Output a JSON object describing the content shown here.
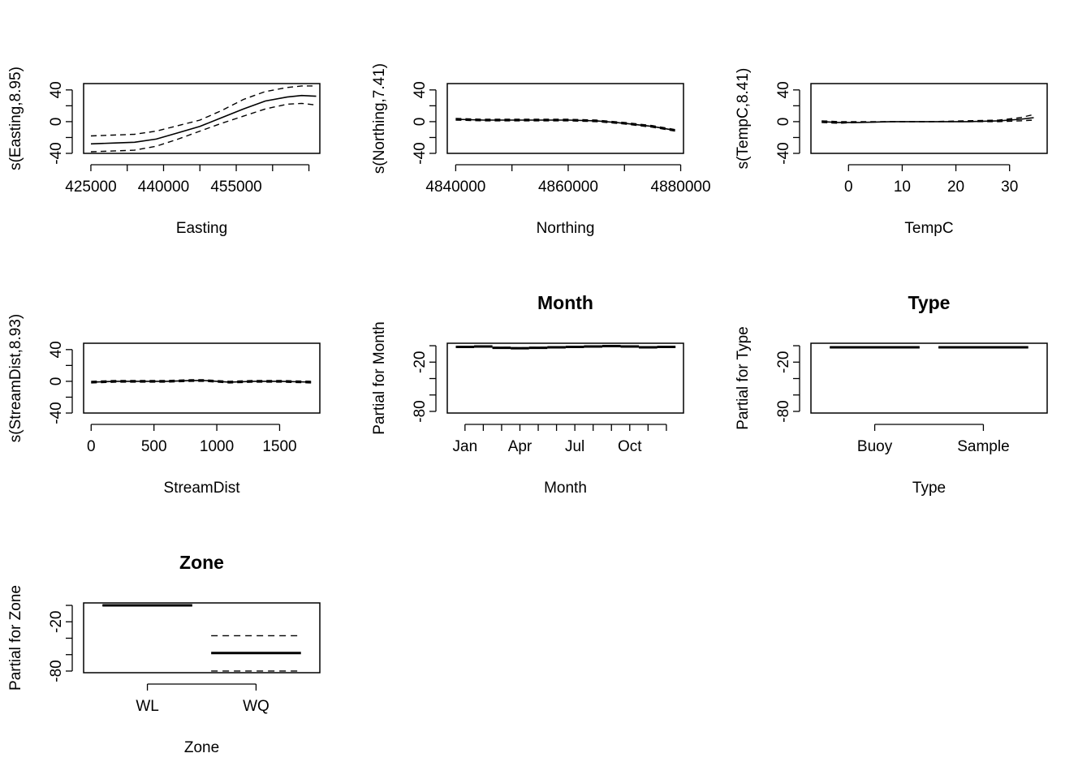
{
  "chart_data": [
    {
      "type": "line",
      "xlabel": "Easting",
      "ylabel": "s(Easting,8.95)",
      "xlim": [
        424000,
        456500
      ],
      "ylim": [
        -40,
        48
      ],
      "xticks": [
        425000,
        430000,
        435000,
        440000,
        445000,
        450000,
        455000
      ],
      "xtick_labels": [
        "425000",
        "",
        "440000",
        "",
        "455000",
        "",
        ""
      ],
      "yticks": [
        -40,
        -20,
        0,
        20,
        40
      ],
      "ytick_labels": [
        "-40",
        "",
        "0",
        "",
        "40"
      ],
      "x": [
        425000,
        428000,
        431000,
        434000,
        437000,
        440000,
        443000,
        446000,
        449000,
        452000,
        454000,
        456000
      ],
      "series": [
        {
          "role": "fit",
          "values": [
            -28,
            -27,
            -26,
            -22,
            -14,
            -6,
            5,
            16,
            26,
            31,
            33,
            32
          ]
        },
        {
          "role": "upper",
          "values": [
            -18,
            -17,
            -16,
            -12,
            -5,
            2,
            14,
            28,
            38,
            43,
            45,
            45
          ]
        },
        {
          "role": "lower",
          "values": [
            -38,
            -37,
            -36,
            -31,
            -22,
            -12,
            -2,
            7,
            16,
            22,
            23,
            21
          ]
        }
      ]
    },
    {
      "type": "line",
      "xlabel": "Northing",
      "ylabel": "s(Northing,7.41)",
      "xlim": [
        4838500,
        4880500
      ],
      "ylim": [
        -40,
        48
      ],
      "xticks": [
        4840000,
        4850000,
        4860000,
        4870000,
        4880000
      ],
      "xtick_labels": [
        "4840000",
        "",
        "4860000",
        "",
        "4880000"
      ],
      "yticks": [
        -40,
        -20,
        0,
        20,
        40
      ],
      "ytick_labels": [
        "-40",
        "",
        "0",
        "",
        "40"
      ],
      "x": [
        4840000,
        4845000,
        4850000,
        4855000,
        4860000,
        4865000,
        4870000,
        4875000,
        4879000
      ],
      "series": [
        {
          "role": "fit",
          "values": [
            3,
            2,
            2,
            2,
            2,
            1,
            -2,
            -6,
            -11
          ]
        },
        {
          "role": "upper",
          "values": [
            4,
            3,
            3,
            3,
            3,
            2,
            -1,
            -5,
            -10
          ]
        },
        {
          "role": "lower",
          "values": [
            2,
            1,
            1,
            1,
            1,
            0,
            -3,
            -7,
            -12
          ]
        }
      ]
    },
    {
      "type": "line",
      "xlabel": "TempC",
      "ylabel": "s(TempC,8.41)",
      "xlim": [
        -7,
        37
      ],
      "ylim": [
        -40,
        48
      ],
      "xticks": [
        0,
        10,
        20,
        30
      ],
      "xtick_labels": [
        "0",
        "10",
        "20",
        "30"
      ],
      "yticks": [
        -40,
        -20,
        0,
        20,
        40
      ],
      "ytick_labels": [
        "-40",
        "",
        "0",
        "",
        "40"
      ],
      "x": [
        -5,
        -2,
        2,
        8,
        15,
        22,
        28,
        32,
        34.5
      ],
      "series": [
        {
          "role": "fit",
          "values": [
            0,
            -1,
            -1,
            0,
            0,
            0,
            1,
            3,
            5
          ]
        },
        {
          "role": "upper",
          "values": [
            1,
            0,
            0,
            0,
            0,
            1,
            2,
            5,
            9
          ]
        },
        {
          "role": "lower",
          "values": [
            -1,
            -2,
            -1,
            0,
            0,
            0,
            0,
            1,
            2
          ]
        }
      ]
    },
    {
      "type": "line",
      "xlabel": "StreamDist",
      "ylabel": "s(StreamDist,8.93)",
      "xlim": [
        -60,
        1820
      ],
      "ylim": [
        -40,
        48
      ],
      "xticks": [
        0,
        500,
        1000,
        1500
      ],
      "xtick_labels": [
        "0",
        "500",
        "1000",
        "1500"
      ],
      "yticks": [
        -40,
        -20,
        0,
        20,
        40
      ],
      "ytick_labels": [
        "-40",
        "",
        "0",
        "",
        "40"
      ],
      "x": [
        0,
        200,
        400,
        600,
        800,
        900,
        1100,
        1300,
        1500,
        1750
      ],
      "series": [
        {
          "role": "fit",
          "values": [
            -1,
            0,
            0,
            0,
            1,
            1,
            -1,
            0,
            0,
            -1
          ]
        },
        {
          "role": "upper",
          "values": [
            0,
            1,
            1,
            1,
            2,
            2,
            0,
            1,
            1,
            0
          ]
        },
        {
          "role": "lower",
          "values": [
            -2,
            -1,
            -1,
            -1,
            0,
            0,
            -2,
            -1,
            -1,
            -2
          ]
        }
      ]
    },
    {
      "type": "factor",
      "title": "Month",
      "xlabel": "Month",
      "ylabel": "Partial for Month",
      "ylim": [
        -82,
        3
      ],
      "yticks": [
        -80,
        -60,
        -40,
        -20,
        0
      ],
      "ytick_labels": [
        "-80",
        "",
        "",
        "-20",
        ""
      ],
      "tick_labels": [
        "Jan",
        "",
        "",
        "Apr",
        "",
        "",
        "Jul",
        "",
        "",
        "Oct",
        "",
        ""
      ],
      "fit": [
        -1.5,
        -1.0,
        -2.5,
        -3.0,
        -2.5,
        -2.0,
        -1.5,
        -1.0,
        -0.5,
        -1.0,
        -2.0,
        -1.5
      ],
      "upper": [
        -1.0,
        -0.5,
        -2.0,
        -2.5,
        -2.0,
        -1.5,
        -1.0,
        -0.5,
        0.0,
        -0.5,
        -1.5,
        -1.0
      ],
      "lower": [
        -2.0,
        -1.5,
        -3.0,
        -3.5,
        -3.0,
        -2.5,
        -2.0,
        -1.5,
        -1.0,
        -1.5,
        -2.5,
        -2.0
      ]
    },
    {
      "type": "factor",
      "title": "Type",
      "xlabel": "Type",
      "ylabel": "Partial for Type",
      "ylim": [
        -82,
        3
      ],
      "yticks": [
        -80,
        -60,
        -40,
        -20,
        0
      ],
      "ytick_labels": [
        "-80",
        "",
        "",
        "-20",
        ""
      ],
      "tick_labels": [
        "Buoy",
        "Sample"
      ],
      "fit": [
        -2,
        -2
      ],
      "upper": [
        -1.5,
        -1.5
      ],
      "lower": [
        -2.5,
        -2.5
      ]
    },
    {
      "type": "factor",
      "title": "Zone",
      "xlabel": "Zone",
      "ylabel": "Partial for Zone",
      "ylim": [
        -82,
        3
      ],
      "yticks": [
        -80,
        -60,
        -40,
        -20,
        0
      ],
      "ytick_labels": [
        "-80",
        "",
        "",
        "-20",
        ""
      ],
      "tick_labels": [
        "WL",
        "WQ"
      ],
      "fit": [
        0,
        -58
      ],
      "upper": [
        0,
        -37
      ],
      "lower": [
        0,
        -80
      ]
    }
  ]
}
